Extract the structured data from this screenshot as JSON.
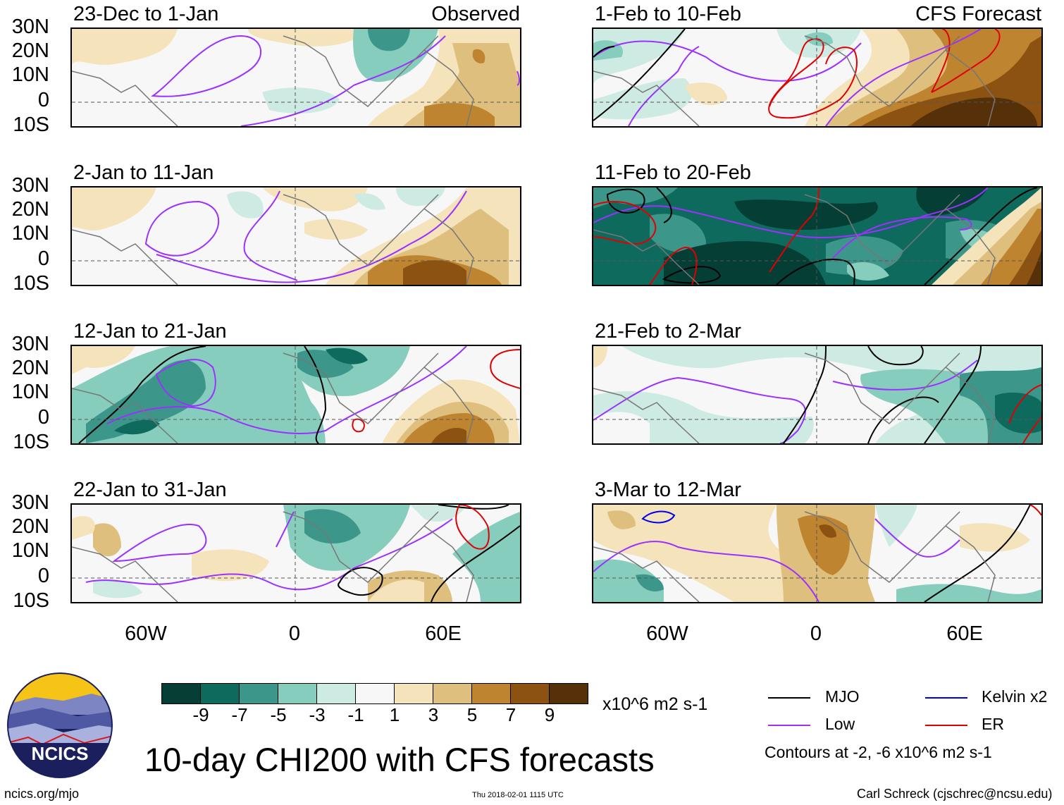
{
  "panels": {
    "left": [
      {
        "title": "23-Dec to 1-Jan",
        "tag": "Observed"
      },
      {
        "title": "2-Jan to 11-Jan",
        "tag": ""
      },
      {
        "title": "12-Jan to 21-Jan",
        "tag": ""
      },
      {
        "title": "22-Jan to 31-Jan",
        "tag": ""
      }
    ],
    "right": [
      {
        "title": "1-Feb to 10-Feb",
        "tag": "CFS Forecast"
      },
      {
        "title": "11-Feb to 20-Feb",
        "tag": ""
      },
      {
        "title": "21-Feb to 2-Mar",
        "tag": ""
      },
      {
        "title": "3-Mar to 12-Mar",
        "tag": ""
      }
    ]
  },
  "lat_labels": [
    "30N",
    "20N",
    "10N",
    "0",
    "10S"
  ],
  "lon_labels": [
    "60W",
    "0",
    "60E"
  ],
  "colorbar": {
    "colors": [
      "#053e34",
      "#0f6a5e",
      "#3c978a",
      "#86cdbd",
      "#cdebe3",
      "#f7f7f7",
      "#f4e3bb",
      "#dfbf7d",
      "#bf842f",
      "#8b5212",
      "#553008"
    ],
    "labels": [
      "-9",
      "-7",
      "-5",
      "-3",
      "-1",
      "1",
      "3",
      "5",
      "7",
      "9"
    ],
    "units": "x10^6 m2 s-1"
  },
  "legend": {
    "items": [
      {
        "label": "MJO",
        "color": "#000000"
      },
      {
        "label": "Kelvin x2",
        "color": "#0000ee"
      },
      {
        "label": "Low",
        "color": "#9b30ff"
      },
      {
        "label": "ER",
        "color": "#e00000"
      }
    ],
    "note": "Contours at -2, -6 x10^6 m2 s-1"
  },
  "main_title": "10-day CHI200 with CFS forecasts",
  "logo_text": "NCICS",
  "footer": {
    "url": "ncics.org/mjo",
    "timestamp": "Thu 2018-02-01 1115 UTC",
    "credit": "Carl Schreck (cjschrec@ncsu.edu)"
  }
}
